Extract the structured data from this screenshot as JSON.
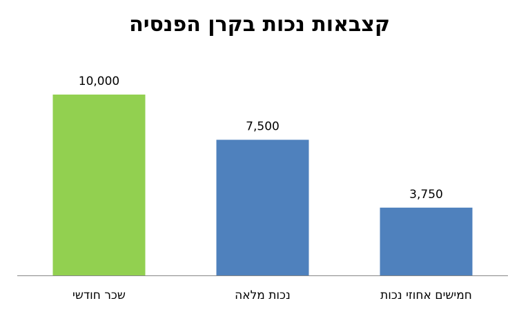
{
  "chart_data": {
    "type": "bar",
    "title": "קצבאות נכות בקרן הפנסיה",
    "categories": [
      "שכר חודשי",
      "נכות מלאה",
      "חמישים אחוזי נכות"
    ],
    "values": [
      10000,
      7500,
      3750
    ],
    "value_labels": [
      "10,000",
      "7,500",
      "3,750"
    ],
    "colors": [
      "#92d050",
      "#4f81bd",
      "#4f81bd"
    ],
    "ylim": [
      0,
      12000
    ],
    "grid": false,
    "legend": "none"
  }
}
